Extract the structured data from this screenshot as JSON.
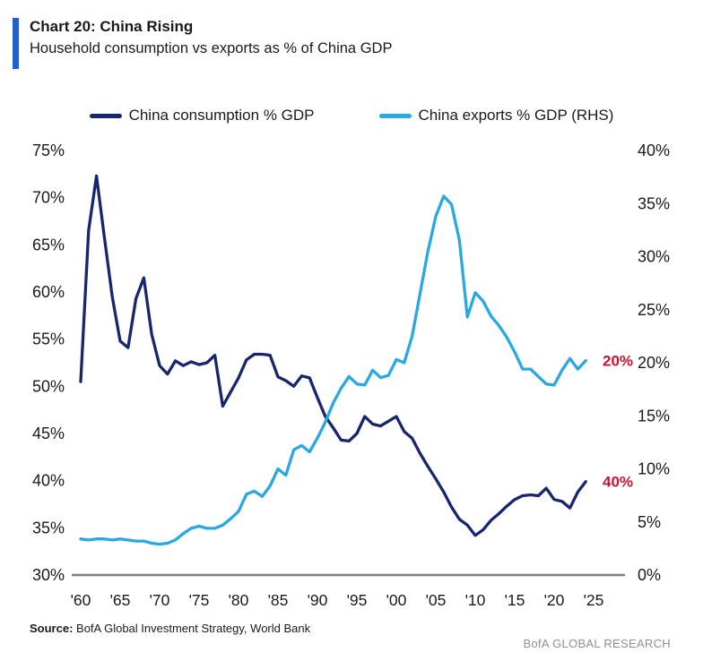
{
  "header": {
    "chart_label": "Chart 20: China Rising",
    "subtitle": "Household consumption vs exports as % of China GDP"
  },
  "colors": {
    "accent_bar": "#1f5fd0",
    "consumption_line": "#17266d",
    "exports_line": "#29a8e1",
    "annotation_red": "#c81430",
    "axis_line": "#7f7f7f",
    "tick_text": "#1a1a1a",
    "brand_gray": "#8f8f8f"
  },
  "legend": {
    "items": [
      {
        "label": "China consumption % GDP",
        "color": "#17266d"
      },
      {
        "label": "China exports % GDP (RHS)",
        "color": "#29a8e1"
      }
    ]
  },
  "chart_data": {
    "type": "line",
    "title": "Chart 20: China Rising",
    "subtitle": "Household consumption vs exports as % of China GDP",
    "x": [
      1960,
      1961,
      1962,
      1963,
      1964,
      1965,
      1966,
      1967,
      1968,
      1969,
      1970,
      1971,
      1972,
      1973,
      1974,
      1975,
      1976,
      1977,
      1978,
      1979,
      1980,
      1981,
      1982,
      1983,
      1984,
      1985,
      1986,
      1987,
      1988,
      1989,
      1990,
      1991,
      1992,
      1993,
      1994,
      1995,
      1996,
      1997,
      1998,
      1999,
      2000,
      2001,
      2002,
      2003,
      2004,
      2005,
      2006,
      2007,
      2008,
      2009,
      2010,
      2011,
      2012,
      2013,
      2014,
      2015,
      2016,
      2017,
      2018,
      2019,
      2020,
      2021,
      2022,
      2023,
      2024
    ],
    "series": [
      {
        "name": "China consumption % GDP",
        "axis": "left",
        "color": "#17266d",
        "values": [
          50.5,
          66.5,
          72.3,
          65.8,
          59.5,
          54.8,
          54.1,
          59.3,
          61.5,
          55.5,
          52.2,
          51.3,
          52.7,
          52.2,
          52.6,
          52.3,
          52.5,
          53.3,
          47.9,
          49.4,
          50.9,
          52.8,
          53.4,
          53.4,
          53.3,
          51.0,
          50.6,
          50.0,
          51.1,
          50.9,
          48.8,
          46.8,
          45.6,
          44.3,
          44.2,
          45.0,
          46.8,
          46.0,
          45.8,
          46.3,
          46.8,
          45.2,
          44.5,
          42.9,
          41.5,
          40.2,
          38.8,
          37.2,
          35.9,
          35.3,
          34.2,
          34.8,
          35.8,
          36.5,
          37.3,
          38.0,
          38.4,
          38.5,
          38.4,
          39.2,
          38.0,
          37.8,
          37.1,
          38.8,
          39.9
        ]
      },
      {
        "name": "China exports % GDP (RHS)",
        "axis": "right",
        "color": "#29a8e1",
        "values": [
          3.4,
          3.3,
          3.4,
          3.4,
          3.3,
          3.4,
          3.3,
          3.2,
          3.2,
          3.0,
          2.9,
          3.0,
          3.3,
          3.9,
          4.4,
          4.6,
          4.4,
          4.4,
          4.7,
          5.3,
          6.0,
          7.6,
          7.9,
          7.4,
          8.4,
          10.0,
          9.4,
          11.8,
          12.2,
          11.6,
          12.9,
          14.4,
          16.2,
          17.6,
          18.7,
          18.0,
          17.9,
          19.3,
          18.6,
          18.8,
          20.3,
          20.0,
          22.5,
          26.5,
          30.5,
          33.8,
          35.7,
          34.9,
          31.5,
          24.3,
          26.6,
          25.8,
          24.4,
          23.5,
          22.4,
          21.0,
          19.4,
          19.4,
          18.7,
          18.0,
          17.9,
          19.3,
          20.4,
          19.4,
          20.2
        ]
      }
    ],
    "left_axis": {
      "min": 30,
      "max": 75,
      "tick_labels": [
        "75%",
        "70%",
        "65%",
        "60%",
        "55%",
        "50%",
        "45%",
        "40%",
        "35%",
        "30%"
      ],
      "tick_values": [
        75,
        70,
        65,
        60,
        55,
        50,
        45,
        40,
        35,
        30
      ]
    },
    "right_axis": {
      "min": 0,
      "max": 40,
      "tick_labels": [
        "40%",
        "35%",
        "30%",
        "25%",
        "20%",
        "15%",
        "10%",
        "5%",
        "0%"
      ],
      "tick_values": [
        40,
        35,
        30,
        25,
        20,
        15,
        10,
        5,
        0
      ]
    },
    "x_ticks": [
      "'60",
      "'65",
      "'70",
      "'75",
      "'80",
      "'85",
      "'90",
      "'95",
      "'00",
      "'05",
      "'10",
      "'15",
      "'20",
      "'25"
    ],
    "annotations": [
      {
        "text": "20%",
        "axis": "right",
        "value": 20.2,
        "color": "#c81430"
      },
      {
        "text": "40%",
        "axis": "left",
        "value": 39.9,
        "color": "#c81430"
      }
    ],
    "grid": "off",
    "legend_position": "top"
  },
  "footer": {
    "source_label": "Source:",
    "source_text": " BofA Global Investment Strategy, World Bank",
    "brand": "BofA GLOBAL RESEARCH"
  }
}
